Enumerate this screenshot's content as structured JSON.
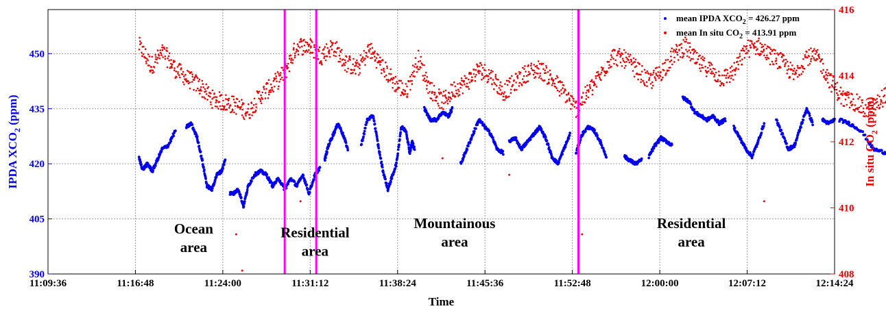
{
  "chart_data": {
    "type": "scatter",
    "xlabel": "Time",
    "ylabel_left": {
      "main": "IPDA XCO",
      "sub": "2",
      "unit": " (ppm)"
    },
    "ylabel_right": {
      "main": "In situ CO",
      "sub": "2",
      "unit": " (ppm)"
    },
    "x_ticks": [
      "11:09:36",
      "11:16:48",
      "11:24:00",
      "11:31:12",
      "11:38:24",
      "11:45:36",
      "11:52:48",
      "12:00:00",
      "12:07:12",
      "12:14:24"
    ],
    "x_range_minutes": [
      0,
      64.8
    ],
    "y_left_ticks": [
      "390",
      "405",
      "420",
      "435",
      "450"
    ],
    "y_left_range": [
      390,
      462
    ],
    "y_right_ticks": [
      "408",
      "410",
      "412",
      "414",
      "416"
    ],
    "y_right_range": [
      408,
      416
    ],
    "grid": true,
    "legend": [
      {
        "text": "mean IPDA XCO",
        "sub": "2",
        "value": " = 426.27 ppm",
        "color": "#0000ee"
      },
      {
        "text": "mean In situ CO",
        "sub": "2",
        "value": " = 413.91 ppm",
        "color": "#ee0000"
      }
    ],
    "region_lines_minutes": [
      19.5,
      22.1,
      43.7
    ],
    "region_line_color": "#ff00ff",
    "annotations": [
      {
        "lines": [
          "Ocean",
          "area"
        ],
        "x_min": 12,
        "y_left": 401
      },
      {
        "lines": [
          "Residential",
          "area"
        ],
        "x_min": 22.0,
        "y_left": 400
      },
      {
        "lines": [
          "Mountainous",
          "area"
        ],
        "x_min": 33.5,
        "y_left": 402.5
      },
      {
        "lines": [
          "Residential",
          "area"
        ],
        "x_min": 53.0,
        "y_left": 402.5
      }
    ],
    "series": [
      {
        "name": "IPDA XCO2",
        "axis": "left",
        "color": "#0000ee",
        "segments": [
          [
            [
              7.5,
              421.5
            ],
            [
              7.8,
              418.5
            ],
            [
              8.2,
              420
            ],
            [
              8.6,
              418
            ],
            [
              9,
              421
            ],
            [
              9.4,
              424
            ],
            [
              9.9,
              425
            ],
            [
              10.5,
              429
            ]
          ],
          [
            [
              11.4,
              430
            ],
            [
              11.8,
              431
            ],
            [
              12.3,
              427
            ],
            [
              12.7,
              421
            ],
            [
              13.1,
              414
            ],
            [
              13.5,
              413
            ],
            [
              13.9,
              417
            ],
            [
              14.3,
              418
            ],
            [
              14.6,
              421
            ]
          ],
          [
            [
              15.0,
              412
            ],
            [
              15.3,
              412
            ],
            [
              15.7,
              413
            ],
            [
              16.1,
              408.5
            ],
            [
              16.5,
              414
            ],
            [
              17,
              417
            ],
            [
              17.5,
              418
            ],
            [
              18,
              417
            ],
            [
              18.5,
              414
            ],
            [
              19,
              416
            ],
            [
              19.5,
              413
            ],
            [
              20,
              416
            ],
            [
              20.5,
              414
            ],
            [
              21,
              417
            ],
            [
              21.5,
              412
            ],
            [
              22,
              417
            ],
            [
              22.4,
              419
            ]
          ],
          [
            [
              22.8,
              421
            ],
            [
              23.1,
              425
            ],
            [
              23.5,
              428
            ],
            [
              23.9,
              431
            ],
            [
              24.3,
              428
            ],
            [
              24.7,
              424
            ]
          ],
          [
            [
              25.8,
              425
            ],
            [
              26.3,
              432
            ],
            [
              26.8,
              433
            ],
            [
              27.2,
              425
            ],
            [
              27.6,
              418
            ],
            [
              28.0,
              413
            ],
            [
              28.3,
              416
            ],
            [
              28.7,
              420
            ],
            [
              29.1,
              430
            ],
            [
              29.5,
              429
            ],
            [
              29.8,
              423
            ],
            [
              30.0,
              426
            ],
            [
              30.2,
              424
            ]
          ],
          [
            [
              31.0,
              435
            ],
            [
              31.5,
              432
            ],
            [
              32.0,
              432
            ],
            [
              32.5,
              434
            ],
            [
              33.0,
              433
            ],
            [
              33.3,
              435
            ]
          ],
          [
            [
              34.0,
              420
            ],
            [
              34.5,
              424
            ],
            [
              35,
              428
            ],
            [
              35.5,
              432
            ],
            [
              36,
              430
            ],
            [
              36.5,
              428
            ],
            [
              37,
              424
            ],
            [
              37.5,
              423
            ]
          ],
          [
            [
              38.0,
              426
            ],
            [
              38.5,
              427
            ],
            [
              39,
              424
            ],
            [
              39.5,
              426
            ],
            [
              40,
              428
            ],
            [
              40.5,
              430
            ],
            [
              41,
              427
            ],
            [
              41.5,
              422
            ],
            [
              42,
              420
            ],
            [
              42.5,
              424
            ],
            [
              43,
              428
            ]
          ],
          [
            [
              43.5,
              423
            ],
            [
              44,
              428
            ],
            [
              44.5,
              430
            ],
            [
              45,
              429
            ],
            [
              45.5,
              426
            ],
            [
              46,
              422
            ]
          ],
          [
            [
              47.5,
              422
            ],
            [
              47.9,
              421
            ],
            [
              48.4,
              420
            ],
            [
              48.9,
              421
            ]
          ],
          [
            [
              49.5,
              422
            ],
            [
              50,
              425
            ],
            [
              50.5,
              427
            ],
            [
              51,
              426
            ],
            [
              51.4,
              425
            ]
          ],
          [
            [
              52.3,
              438
            ],
            [
              52.8,
              437
            ],
            [
              53.3,
              434
            ],
            [
              53.8,
              433
            ],
            [
              54.3,
              432
            ],
            [
              54.8,
              433
            ],
            [
              55.3,
              431
            ],
            [
              55.8,
              432
            ]
          ],
          [
            [
              56.5,
              430
            ],
            [
              57,
              427
            ],
            [
              57.5,
              424
            ],
            [
              58,
              422
            ],
            [
              58.5,
              426
            ],
            [
              59,
              431
            ]
          ],
          [
            [
              60.0,
              432
            ],
            [
              60.5,
              428
            ],
            [
              61,
              424
            ],
            [
              61.5,
              425
            ],
            [
              62,
              430
            ],
            [
              62.5,
              435
            ],
            [
              63,
              431
            ]
          ],
          [
            [
              63.8,
              432
            ],
            [
              64.3,
              431
            ],
            [
              64.8,
              432
            ]
          ],
          [
            [
              65.2,
              432
            ],
            [
              66,
              431
            ],
            [
              67,
              429
            ],
            [
              68,
              424
            ],
            [
              69,
              423
            ],
            [
              70,
              425
            ],
            [
              71,
              426
            ],
            [
              72,
              423
            ],
            [
              73,
              427
            ],
            [
              73.8,
              434
            ]
          ],
          [
            [
              74.5,
              431
            ],
            [
              75.5,
              430
            ],
            [
              76.5,
              431
            ]
          ]
        ]
      },
      {
        "name": "In situ CO2",
        "axis": "right",
        "color": "#ee0000",
        "trend": [
          [
            7.5,
            414.9
          ],
          [
            8.5,
            414.3
          ],
          [
            9.5,
            414.7
          ],
          [
            10.5,
            414.2
          ],
          [
            11.5,
            413.9
          ],
          [
            12.5,
            413.7
          ],
          [
            13.5,
            413.3
          ],
          [
            14.5,
            413.2
          ],
          [
            15.5,
            413.1
          ],
          [
            16.5,
            412.9
          ],
          [
            17.5,
            413.4
          ],
          [
            18.5,
            413.7
          ],
          [
            19.5,
            414.1
          ],
          [
            20.5,
            414.9
          ],
          [
            21.5,
            414.9
          ],
          [
            22.5,
            414.6
          ],
          [
            23.5,
            414.9
          ],
          [
            24.5,
            414.4
          ],
          [
            25.5,
            414.2
          ],
          [
            26.5,
            414.8
          ],
          [
            27.5,
            414.3
          ],
          [
            28.5,
            413.8
          ],
          [
            29.5,
            413.5
          ],
          [
            30.5,
            414.5
          ],
          [
            31.5,
            413.6
          ],
          [
            32.5,
            413.2
          ],
          [
            33.5,
            413.6
          ],
          [
            34.5,
            413.8
          ],
          [
            35.5,
            414.2
          ],
          [
            36.5,
            414.0
          ],
          [
            37.5,
            413.5
          ],
          [
            38.5,
            413.8
          ],
          [
            39.5,
            414.1
          ],
          [
            40.5,
            414.2
          ],
          [
            41.5,
            413.9
          ],
          [
            42.5,
            413.5
          ],
          [
            43.5,
            413.0
          ],
          [
            44.5,
            413.5
          ],
          [
            45.5,
            414.0
          ],
          [
            46.5,
            414.6
          ],
          [
            47.5,
            414.5
          ],
          [
            48.5,
            414.2
          ],
          [
            49.5,
            413.8
          ],
          [
            50.5,
            414.1
          ],
          [
            51.5,
            414.6
          ],
          [
            52.5,
            414.9
          ],
          [
            53.5,
            414.4
          ],
          [
            54.5,
            414.2
          ],
          [
            55.5,
            413.9
          ],
          [
            56.5,
            414.1
          ],
          [
            57.5,
            414.8
          ],
          [
            58.5,
            414.9
          ],
          [
            59.5,
            414.6
          ],
          [
            60.5,
            414.4
          ],
          [
            61.5,
            414.0
          ],
          [
            62.5,
            414.6
          ],
          [
            63.5,
            414.5
          ],
          [
            64.5,
            413.8
          ],
          [
            65.5,
            413.3
          ],
          [
            66.5,
            413.2
          ],
          [
            67.5,
            412.9
          ],
          [
            68.5,
            413.2
          ],
          [
            69.5,
            413.7
          ],
          [
            70.5,
            414.3
          ],
          [
            71.5,
            414.5
          ],
          [
            72.5,
            414.1
          ],
          [
            73.5,
            413.7
          ],
          [
            74.5,
            414.2
          ],
          [
            75.5,
            414.3
          ]
        ],
        "outliers": [
          [
            20.8,
            410.2
          ],
          [
            15.5,
            409.2
          ],
          [
            16.0,
            408.1
          ],
          [
            32.5,
            411.5
          ],
          [
            44.0,
            409.2
          ],
          [
            59.0,
            410.2
          ],
          [
            58.0,
            411.5
          ],
          [
            38.0,
            411.0
          ]
        ]
      }
    ]
  }
}
